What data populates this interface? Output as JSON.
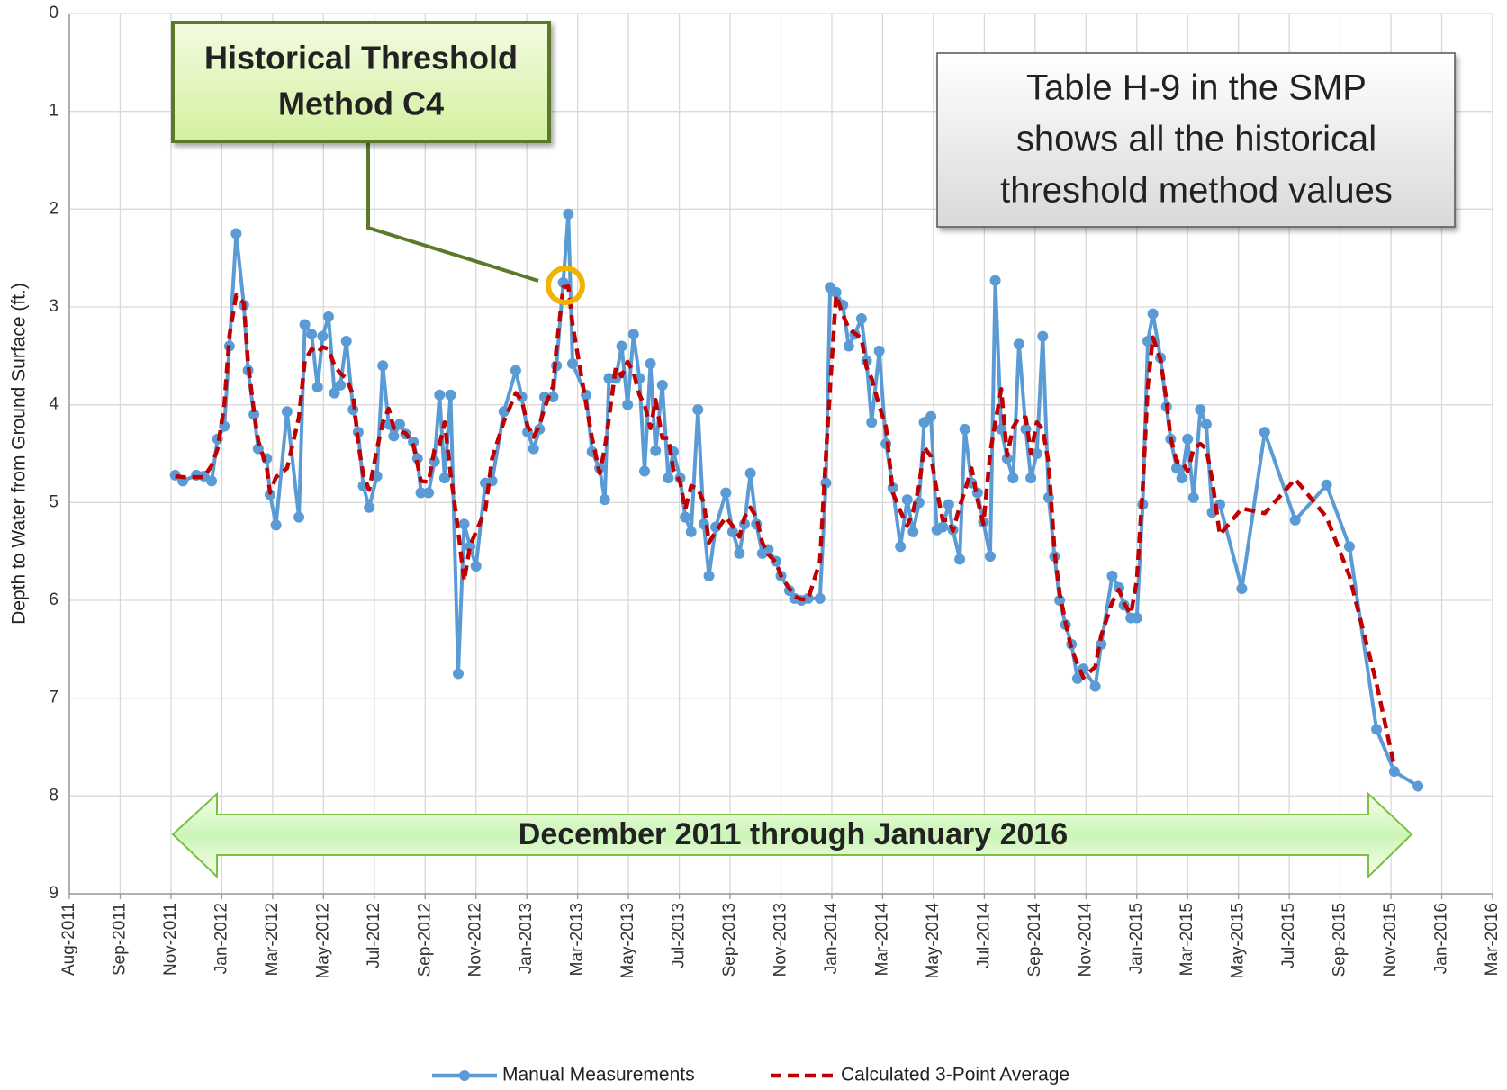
{
  "chart_data": {
    "type": "line",
    "y_label": "Depth to Water from Ground Surface (ft.)",
    "ylim": [
      0,
      9
    ],
    "y_inverted": true,
    "yticks": [
      0,
      1,
      2,
      3,
      4,
      5,
      6,
      7,
      8,
      9
    ],
    "xlim": [
      "2011-08-01",
      "2016-03-07"
    ],
    "xticks": [
      {
        "value": "2011-08-01",
        "label": "Aug-2011"
      },
      {
        "value": "2011-09-30",
        "label": "Sep-2011"
      },
      {
        "value": "2011-11-29",
        "label": "Nov-2011"
      },
      {
        "value": "2012-01-28",
        "label": "Jan-2012"
      },
      {
        "value": "2012-03-28",
        "label": "Mar-2012"
      },
      {
        "value": "2012-05-27",
        "label": "May-2012"
      },
      {
        "value": "2012-07-26",
        "label": "Jul-2012"
      },
      {
        "value": "2012-09-24",
        "label": "Sep-2012"
      },
      {
        "value": "2012-11-23",
        "label": "Nov-2012"
      },
      {
        "value": "2013-01-22",
        "label": "Jan-2013"
      },
      {
        "value": "2013-03-23",
        "label": "Mar-2013"
      },
      {
        "value": "2013-05-22",
        "label": "May-2013"
      },
      {
        "value": "2013-07-21",
        "label": "Jul-2013"
      },
      {
        "value": "2013-09-19",
        "label": "Sep-2013"
      },
      {
        "value": "2013-11-18",
        "label": "Nov-2013"
      },
      {
        "value": "2014-01-17",
        "label": "Jan-2014"
      },
      {
        "value": "2014-03-18",
        "label": "Mar-2014"
      },
      {
        "value": "2014-05-17",
        "label": "May-2014"
      },
      {
        "value": "2014-07-16",
        "label": "Jul-2014"
      },
      {
        "value": "2014-09-14",
        "label": "Sep-2014"
      },
      {
        "value": "2014-11-13",
        "label": "Nov-2014"
      },
      {
        "value": "2015-01-12",
        "label": "Jan-2015"
      },
      {
        "value": "2015-03-13",
        "label": "Mar-2015"
      },
      {
        "value": "2015-05-12",
        "label": "May-2015"
      },
      {
        "value": "2015-07-11",
        "label": "Jul-2015"
      },
      {
        "value": "2015-09-09",
        "label": "Sep-2015"
      },
      {
        "value": "2015-11-08",
        "label": "Nov-2015"
      },
      {
        "value": "2016-01-07",
        "label": "Jan-2016"
      },
      {
        "value": "2016-03-07",
        "label": "Mar-2016"
      }
    ],
    "grid": true,
    "legend": "bottom",
    "x": [
      "2011-12-04",
      "2011-12-13",
      "2011-12-29",
      "2012-01-07",
      "2012-01-16",
      "2012-01-23",
      "2012-01-31",
      "2012-02-06",
      "2012-02-14",
      "2012-02-23",
      "2012-02-28",
      "2012-03-06",
      "2012-03-11",
      "2012-03-21",
      "2012-03-25",
      "2012-04-01",
      "2012-04-14",
      "2012-04-28",
      "2012-05-05",
      "2012-05-13",
      "2012-05-20",
      "2012-05-26",
      "2012-06-02",
      "2012-06-09",
      "2012-06-16",
      "2012-06-23",
      "2012-07-01",
      "2012-07-07",
      "2012-07-13",
      "2012-07-20",
      "2012-07-29",
      "2012-08-05",
      "2012-08-12",
      "2012-08-18",
      "2012-08-25",
      "2012-09-01",
      "2012-09-10",
      "2012-09-15",
      "2012-09-19",
      "2012-09-28",
      "2012-10-05",
      "2012-10-11",
      "2012-10-17",
      "2012-10-24",
      "2012-11-02",
      "2012-11-09",
      "2012-11-16",
      "2012-11-23",
      "2012-12-04",
      "2012-12-12",
      "2012-12-26",
      "2013-01-09",
      "2013-01-16",
      "2013-01-23",
      "2013-01-30",
      "2013-02-06",
      "2013-02-12",
      "2013-02-22",
      "2013-02-26",
      "2013-03-06",
      "2013-03-12",
      "2013-03-17",
      "2013-04-02",
      "2013-04-09",
      "2013-04-18",
      "2013-04-24",
      "2013-04-29",
      "2013-05-07",
      "2013-05-14",
      "2013-05-21",
      "2013-05-28",
      "2013-06-04",
      "2013-06-10",
      "2013-06-17",
      "2013-06-23",
      "2013-07-01",
      "2013-07-08",
      "2013-07-14",
      "2013-07-22",
      "2013-07-28",
      "2013-08-04",
      "2013-08-12",
      "2013-08-19",
      "2013-08-25",
      "2013-09-02",
      "2013-09-14",
      "2013-09-22",
      "2013-09-30",
      "2013-10-06",
      "2013-10-13",
      "2013-10-20",
      "2013-10-27",
      "2013-11-03",
      "2013-11-12",
      "2013-11-18",
      "2013-11-28",
      "2013-12-04",
      "2013-12-12",
      "2013-12-20",
      "2014-01-03",
      "2014-01-10",
      "2014-01-15",
      "2014-01-22",
      "2014-01-30",
      "2014-02-06",
      "2014-02-13",
      "2014-02-21",
      "2014-02-27",
      "2014-03-05",
      "2014-03-14",
      "2014-03-22",
      "2014-03-30",
      "2014-04-08",
      "2014-04-16",
      "2014-04-23",
      "2014-04-30",
      "2014-05-06",
      "2014-05-14",
      "2014-05-21",
      "2014-05-28",
      "2014-06-04",
      "2014-06-09",
      "2014-06-17",
      "2014-06-23",
      "2014-07-01",
      "2014-07-08",
      "2014-07-15",
      "2014-07-23",
      "2014-07-29",
      "2014-08-05",
      "2014-08-12",
      "2014-08-19",
      "2014-08-26",
      "2014-09-03",
      "2014-09-09",
      "2014-09-16",
      "2014-09-23",
      "2014-09-30",
      "2014-10-07",
      "2014-10-13",
      "2014-10-20",
      "2014-10-27",
      "2014-11-03",
      "2014-11-10",
      "2014-11-24",
      "2014-12-01",
      "2014-12-14",
      "2014-12-22",
      "2014-12-28",
      "2015-01-05",
      "2015-01-12",
      "2015-01-19",
      "2015-01-25",
      "2015-01-31",
      "2015-02-09",
      "2015-02-16",
      "2015-02-21",
      "2015-02-28",
      "2015-03-06",
      "2015-03-13",
      "2015-03-20",
      "2015-03-28",
      "2015-04-04",
      "2015-04-11",
      "2015-04-20",
      "2015-05-16",
      "2015-06-12",
      "2015-07-18",
      "2015-08-24",
      "2015-09-20",
      "2015-10-22",
      "2015-11-12",
      "2015-12-10"
    ],
    "series": [
      {
        "name": "Manual Measurements",
        "color": "#5b9bd5",
        "style": "solid",
        "markers": true,
        "values": [
          4.72,
          4.78,
          4.72,
          4.73,
          4.78,
          4.35,
          4.22,
          3.4,
          2.25,
          2.98,
          3.65,
          4.1,
          4.45,
          4.55,
          4.92,
          5.23,
          4.07,
          5.15,
          3.18,
          3.28,
          3.82,
          3.3,
          3.1,
          3.88,
          3.8,
          3.35,
          4.05,
          4.28,
          4.83,
          5.05,
          4.73,
          3.6,
          4.2,
          4.32,
          4.2,
          4.3,
          4.38,
          4.55,
          4.9,
          4.9,
          4.58,
          3.9,
          4.75,
          3.9,
          6.75,
          5.22,
          5.45,
          5.65,
          4.8,
          4.78,
          4.07,
          3.65,
          3.92,
          4.28,
          4.45,
          4.25,
          3.92,
          3.92,
          3.6,
          2.75,
          2.05,
          3.58,
          3.9,
          4.48,
          4.65,
          4.97,
          3.73,
          3.73,
          3.4,
          4.0,
          3.28,
          3.73,
          4.68,
          3.58,
          4.47,
          3.8,
          4.75,
          4.48,
          4.75,
          5.15,
          5.3,
          4.05,
          5.22,
          5.75,
          5.25,
          4.9,
          5.3,
          5.52,
          5.22,
          4.7,
          5.22,
          5.52,
          5.48,
          5.6,
          5.75,
          5.9,
          5.98,
          6.0,
          5.98,
          5.98,
          4.8,
          2.8,
          2.85,
          2.98,
          3.4,
          3.28,
          3.12,
          3.55,
          4.18,
          3.45,
          4.4,
          4.85,
          5.45,
          4.97,
          5.3,
          5.0,
          4.18,
          4.12,
          5.28,
          5.25,
          5.02,
          5.28,
          5.58,
          4.25,
          4.8,
          4.9,
          5.2,
          5.55,
          2.73,
          4.25,
          4.55,
          4.75,
          3.38,
          4.25,
          4.75,
          4.5,
          3.3,
          4.95,
          5.55,
          6.0,
          6.25,
          6.45,
          6.8,
          6.7,
          6.88,
          6.45,
          5.75,
          5.87,
          6.05,
          6.18,
          6.18,
          5.02,
          3.35,
          3.07,
          3.52,
          4.02,
          4.35,
          4.65,
          4.75,
          4.35,
          4.95,
          4.05,
          4.2,
          5.1,
          5.02,
          5.88,
          4.28,
          5.18,
          4.82,
          5.45,
          7.32,
          7.75,
          7.9
        ]
      },
      {
        "name": "Calculated 3-Point Average",
        "color": "#c00000",
        "style": "dashed",
        "markers": false,
        "values": [
          4.73,
          4.74,
          4.74,
          4.74,
          4.62,
          4.45,
          4.0,
          3.29,
          2.88,
          2.96,
          3.58,
          4.07,
          4.37,
          4.64,
          4.9,
          4.74,
          4.65,
          4.13,
          3.55,
          3.43,
          3.47,
          3.41,
          3.43,
          3.6,
          3.68,
          3.73,
          3.9,
          4.39,
          4.72,
          4.87,
          4.46,
          4.18,
          4.04,
          4.24,
          4.27,
          4.29,
          4.41,
          4.61,
          4.78,
          4.79,
          4.46,
          4.41,
          4.18,
          4.7,
          5.29,
          5.8,
          5.44,
          5.3,
          5.08,
          4.55,
          4.17,
          3.88,
          3.95,
          4.22,
          4.33,
          4.21,
          4.03,
          3.81,
          3.42,
          2.8,
          2.79,
          3.18,
          3.99,
          4.34,
          4.7,
          4.45,
          4.14,
          3.62,
          3.71,
          3.56,
          3.67,
          3.9,
          4.0,
          4.24,
          3.95,
          4.34,
          4.34,
          4.66,
          4.79,
          5.07,
          4.83,
          4.86,
          5.0,
          5.41,
          5.3,
          5.15,
          5.24,
          5.35,
          5.15,
          5.05,
          5.15,
          5.41,
          5.53,
          5.61,
          5.75,
          5.88,
          5.96,
          5.99,
          5.99,
          5.6,
          4.53,
          3.82,
          2.88,
          3.08,
          3.22,
          3.27,
          3.32,
          3.62,
          3.73,
          4.01,
          4.23,
          4.9,
          5.09,
          5.24,
          5.09,
          4.83,
          4.43,
          4.53,
          4.88,
          5.18,
          5.18,
          5.29,
          5.04,
          4.88,
          4.65,
          4.97,
          5.22,
          4.49,
          4.18,
          3.84,
          4.52,
          4.23,
          4.13,
          4.13,
          4.5,
          4.18,
          4.25,
          4.6,
          5.5,
          5.93,
          6.23,
          6.5,
          6.65,
          6.79,
          6.68,
          6.36,
          6.02,
          5.89,
          6.03,
          6.14,
          5.8,
          4.85,
          3.81,
          3.31,
          3.54,
          3.96,
          4.34,
          4.58,
          4.58,
          4.68,
          4.45,
          4.4,
          4.45,
          4.77,
          5.33,
          5.06,
          5.11,
          4.76,
          5.15,
          5.75,
          6.85,
          7.7,
          null
        ]
      }
    ],
    "annotations": [
      {
        "lines": [
          "Historical Threshold",
          "Method C4"
        ]
      },
      {
        "lines": [
          "Table H-9 in the SMP",
          "shows all the historical",
          "threshold method values"
        ]
      },
      {
        "lines": [
          "December 2011 through January 2016"
        ]
      }
    ]
  }
}
